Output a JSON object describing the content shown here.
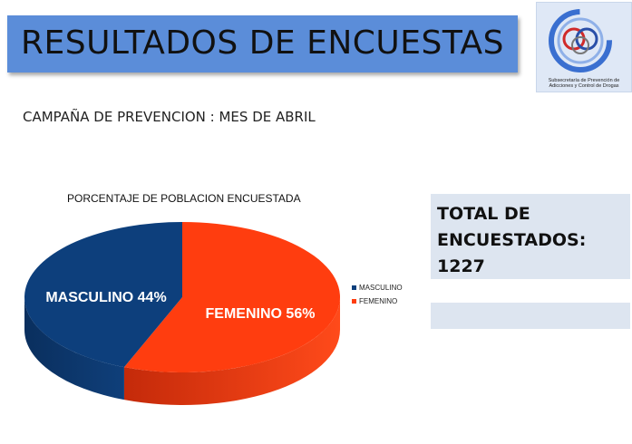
{
  "header": {
    "title": "RESULTADOS DE ENCUESTAS"
  },
  "logo": {
    "caption": "Subsecretaría de Prevención de Adicciones y Control de Drogas"
  },
  "subtitle": "CAMPAÑA DE PREVENCION : MES DE ABRIL",
  "total_box": {
    "text": "TOTAL DE\nENCUESTADOS:\n1227"
  },
  "colors": {
    "masculino": "#0d3f7c",
    "femenino": "#ff3d0f",
    "title_bar": "#5b8dd9"
  },
  "chart_data": {
    "type": "pie",
    "title": "PORCENTAJE DE POBLACION  ENCUESTADA",
    "categories": [
      "MASCULINO",
      "FEMENINO"
    ],
    "values": [
      44,
      56
    ],
    "data_labels": [
      "MASCULINO 44%",
      "FEMENINO 56%"
    ],
    "legend_position": "right",
    "style": "3d"
  }
}
